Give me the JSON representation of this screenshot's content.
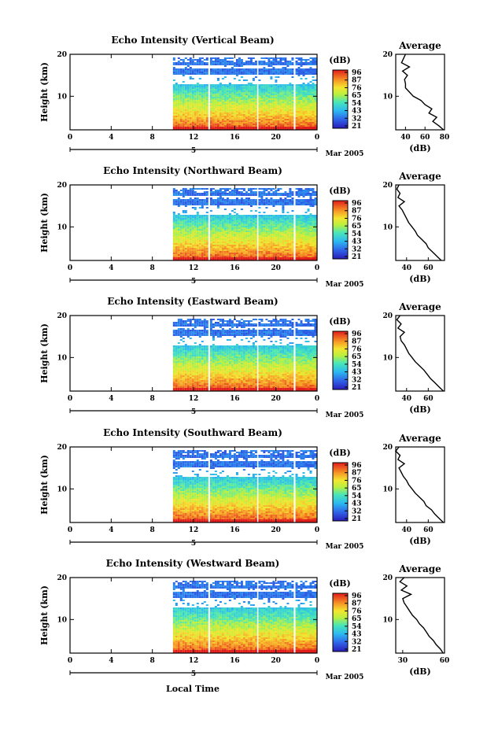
{
  "figure": {
    "xlabel": "Local Time",
    "date_label": "Mar 2005",
    "day_label": "5",
    "colorbar_unit": "(dB)",
    "colorbar_ticks": [
      "96",
      "87",
      "76",
      "65",
      "54",
      "43",
      "32",
      "21"
    ],
    "profile_title": "Average",
    "profile_xlabel": "(dB)",
    "ylabel": "Height (km)"
  },
  "chart_data": [
    {
      "type": "heatmap",
      "title": "Echo Intensity (Vertical Beam)",
      "ylabel": "Height (km)",
      "x_ticks": [
        "0",
        "4",
        "8",
        "12",
        "16",
        "20",
        "0"
      ],
      "y_ticks": [
        "20",
        "10"
      ],
      "xlim": [
        0,
        24
      ],
      "ylim": [
        2,
        20
      ],
      "data_coverage_hours": [
        [
          10,
          13.3
        ],
        [
          13.6,
          18
        ],
        [
          18.3,
          21.6
        ],
        [
          21.9,
          24
        ]
      ],
      "colorbar": {
        "label": "(dB)",
        "ticks": [
          96,
          87,
          76,
          65,
          54,
          43,
          32,
          21
        ]
      },
      "profile": {
        "title": "Average",
        "xlabel": "(dB)",
        "x_ticks": [
          "40",
          "60",
          "80"
        ],
        "xlim": [
          30,
          80
        ],
        "heights_km": [
          2,
          3,
          4,
          5,
          6,
          7,
          8,
          9,
          10,
          11,
          12,
          13,
          14,
          15,
          16,
          17,
          18,
          19,
          20
        ],
        "values_db": [
          79,
          74,
          68,
          72,
          64,
          67,
          60,
          56,
          48,
          44,
          40,
          40,
          39,
          42,
          37,
          44,
          36,
          38,
          40
        ]
      }
    },
    {
      "type": "heatmap",
      "title": "Echo Intensity (Northward Beam)",
      "ylabel": "Height (km)",
      "x_ticks": [
        "0",
        "4",
        "8",
        "12",
        "16",
        "20",
        "0"
      ],
      "y_ticks": [
        "20",
        "10"
      ],
      "xlim": [
        0,
        24
      ],
      "ylim": [
        2,
        20
      ],
      "data_coverage_hours": [
        [
          10,
          13.3
        ],
        [
          13.6,
          18
        ],
        [
          18.3,
          21.6
        ],
        [
          21.9,
          24
        ]
      ],
      "colorbar": {
        "label": "(dB)",
        "ticks": [
          96,
          87,
          76,
          65,
          54,
          43,
          32,
          21
        ]
      },
      "profile": {
        "title": "Average",
        "xlabel": "(dB)",
        "x_ticks": [
          "40",
          "60"
        ],
        "xlim": [
          30,
          75
        ],
        "heights_km": [
          2,
          3,
          4,
          5,
          6,
          7,
          8,
          9,
          10,
          11,
          12,
          13,
          14,
          15,
          16,
          17,
          18,
          19,
          20
        ],
        "values_db": [
          72,
          68,
          64,
          60,
          58,
          54,
          50,
          48,
          45,
          42,
          40,
          38,
          36,
          33,
          38,
          32,
          34,
          31,
          33
        ]
      }
    },
    {
      "type": "heatmap",
      "title": "Echo Intensity (Eastward Beam)",
      "ylabel": "Height (km)",
      "x_ticks": [
        "0",
        "4",
        "8",
        "12",
        "16",
        "20",
        "0"
      ],
      "y_ticks": [
        "20",
        "10"
      ],
      "xlim": [
        0,
        24
      ],
      "ylim": [
        2,
        20
      ],
      "data_coverage_hours": [
        [
          10,
          13.3
        ],
        [
          13.6,
          18
        ],
        [
          18.3,
          21.6
        ],
        [
          21.9,
          24
        ]
      ],
      "colorbar": {
        "label": "(dB)",
        "ticks": [
          96,
          87,
          76,
          65,
          54,
          43,
          32,
          21
        ]
      },
      "profile": {
        "title": "Average",
        "xlabel": "(dB)",
        "x_ticks": [
          "40",
          "60"
        ],
        "xlim": [
          30,
          75
        ],
        "heights_km": [
          2,
          3,
          4,
          5,
          6,
          7,
          8,
          9,
          10,
          11,
          12,
          13,
          14,
          15,
          16,
          17,
          18,
          19,
          20
        ],
        "values_db": [
          74,
          70,
          66,
          62,
          59,
          56,
          52,
          48,
          45,
          42,
          40,
          38,
          35,
          34,
          38,
          32,
          35,
          31,
          34
        ]
      }
    },
    {
      "type": "heatmap",
      "title": "Echo Intensity (Southward Beam)",
      "ylabel": "Height (km)",
      "x_ticks": [
        "0",
        "4",
        "8",
        "12",
        "16",
        "20",
        "0"
      ],
      "y_ticks": [
        "20",
        "10"
      ],
      "xlim": [
        0,
        24
      ],
      "ylim": [
        2,
        20
      ],
      "data_coverage_hours": [
        [
          10,
          13.3
        ],
        [
          13.6,
          18
        ],
        [
          18.3,
          21.6
        ],
        [
          21.9,
          24
        ]
      ],
      "colorbar": {
        "label": "(dB)",
        "ticks": [
          96,
          87,
          76,
          65,
          54,
          43,
          32,
          21
        ]
      },
      "profile": {
        "title": "Average",
        "xlabel": "(dB)",
        "x_ticks": [
          "40",
          "60"
        ],
        "xlim": [
          30,
          75
        ],
        "heights_km": [
          2,
          3,
          4,
          5,
          6,
          7,
          8,
          9,
          10,
          11,
          12,
          13,
          14,
          15,
          16,
          17,
          18,
          19,
          20
        ],
        "values_db": [
          74,
          70,
          66,
          63,
          58,
          56,
          52,
          48,
          45,
          42,
          40,
          37,
          35,
          33,
          38,
          32,
          34,
          30,
          33
        ]
      }
    },
    {
      "type": "heatmap",
      "title": "Echo Intensity (Westward Beam)",
      "ylabel": "Height (km)",
      "x_ticks": [
        "0",
        "4",
        "8",
        "12",
        "16",
        "20",
        "0"
      ],
      "y_ticks": [
        "20",
        "10"
      ],
      "xlim": [
        0,
        24
      ],
      "ylim": [
        2,
        20
      ],
      "data_coverage_hours": [
        [
          10,
          13.3
        ],
        [
          13.6,
          18
        ],
        [
          18.3,
          21.6
        ],
        [
          21.9,
          24
        ]
      ],
      "colorbar": {
        "label": "(dB)",
        "ticks": [
          96,
          87,
          76,
          65,
          54,
          43,
          32,
          21
        ]
      },
      "profile": {
        "title": "Average",
        "xlabel": "(dB)",
        "x_ticks": [
          "30",
          "60"
        ],
        "xlim": [
          25,
          60
        ],
        "heights_km": [
          2,
          3,
          4,
          5,
          6,
          7,
          8,
          9,
          10,
          11,
          12,
          13,
          14,
          15,
          16,
          17,
          18,
          19,
          20
        ],
        "values_db": [
          59,
          57,
          54,
          52,
          49,
          47,
          45,
          42,
          40,
          37,
          35,
          33,
          31,
          30,
          36,
          29,
          33,
          28,
          31
        ]
      }
    }
  ]
}
